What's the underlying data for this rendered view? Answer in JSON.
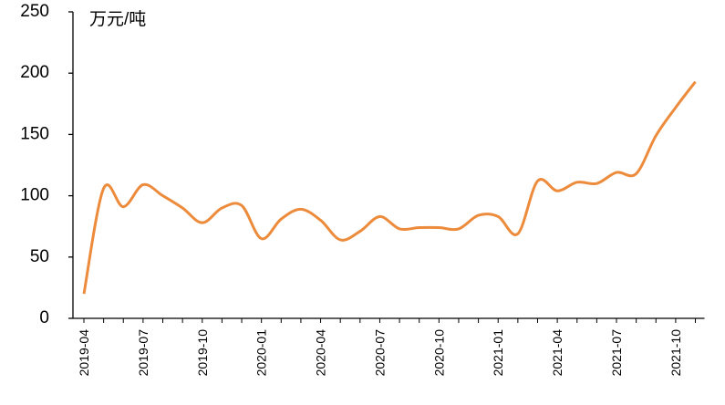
{
  "chart_data": {
    "type": "line",
    "annotation": "万元/吨",
    "categories": [
      "2019-04",
      null,
      null,
      "2019-07",
      null,
      null,
      "2019-10",
      null,
      null,
      "2020-01",
      null,
      null,
      "2020-04",
      null,
      null,
      "2020-07",
      null,
      null,
      "2020-10",
      null,
      null,
      "2021-01",
      null,
      null,
      "2021-04",
      null,
      null,
      "2021-07",
      null,
      null,
      "2021-10",
      null
    ],
    "values": [
      20,
      106,
      91,
      109,
      100,
      90,
      78,
      90,
      92,
      65,
      81,
      89,
      80,
      64,
      71,
      83,
      73,
      74,
      74,
      73,
      84,
      83,
      69,
      112,
      104,
      111,
      110,
      119,
      118,
      149,
      172,
      193
    ],
    "color": "#ed8b3c",
    "ylim": [
      0,
      250
    ],
    "yticks": [
      0,
      50,
      100,
      150,
      200,
      250
    ],
    "grid": false
  }
}
